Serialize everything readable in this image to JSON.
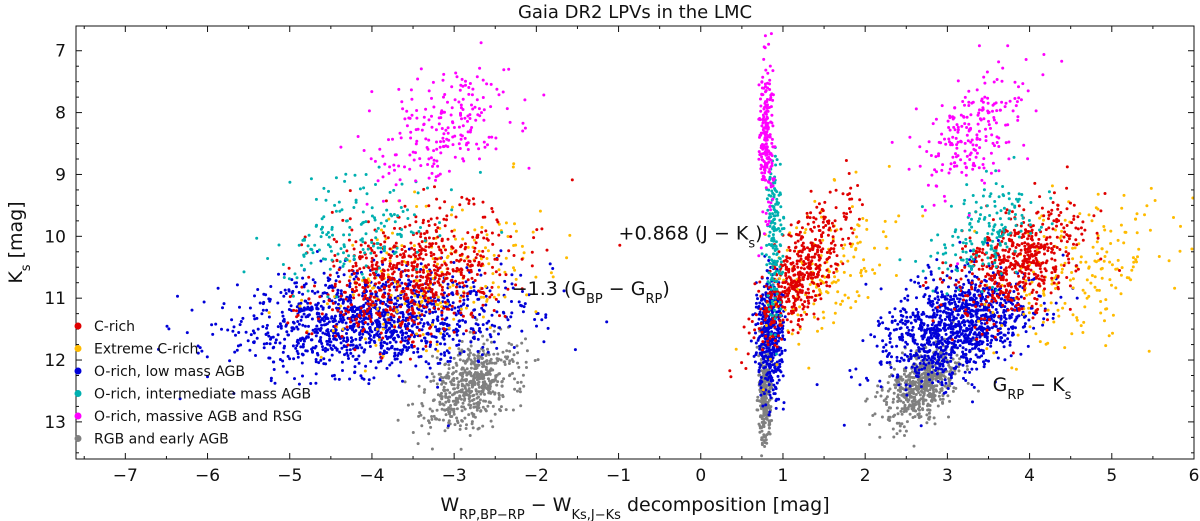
{
  "chart_data": {
    "type": "scatter",
    "title": "Gaia DR2 LPVs in the LMC",
    "xlabel": {
      "main": "W",
      "sub": "RP,BP−RP",
      "mid": " − W",
      "sub2": "Ks,J−Ks",
      "rest": " decomposition  [mag]"
    },
    "ylabel": {
      "main": "K",
      "sub": "s",
      "rest": " [mag]"
    },
    "xlim": [
      -7.6,
      6.0
    ],
    "ylim": [
      13.6,
      6.6
    ],
    "y_inverted": true,
    "xticks": [
      -7,
      -6,
      -5,
      -4,
      -3,
      -2,
      -1,
      0,
      1,
      2,
      3,
      4,
      5,
      6
    ],
    "xtick_labels": [
      "−7",
      "−6",
      "−5",
      "−4",
      "−3",
      "−2",
      "−1",
      "0",
      "1",
      "2",
      "3",
      "4",
      "5",
      "6"
    ],
    "yticks": [
      7,
      8,
      9,
      10,
      11,
      12,
      13
    ],
    "ytick_labels": [
      "7",
      "8",
      "9",
      "10",
      "11",
      "12",
      "13"
    ],
    "annotations": [
      {
        "pre": "−1.3 (G",
        "sub1": "BP",
        "mid": " − G",
        "sub2": "RP",
        "post": ")",
        "x": -2.3,
        "y": 10.95
      },
      {
        "pre": "+0.868 (J − K",
        "sub1": "s",
        "mid": ")",
        "sub2": "",
        "post": "",
        "x": -1.0,
        "y": 10.05
      },
      {
        "pre": "G",
        "sub1": "RP",
        "mid": " − K",
        "sub2": "s",
        "post": "",
        "x": 3.55,
        "y": 12.5
      }
    ],
    "legend": {
      "position": "lower-left"
    },
    "series": [
      {
        "name": "C-rich",
        "color": "#e00000",
        "clusters": [
          {
            "cx": -3.5,
            "cy": 10.6,
            "sx": 0.55,
            "sy": 0.5,
            "n": 700
          },
          {
            "cx": 1.2,
            "cy": 10.6,
            "sx": 0.2,
            "sy": 0.55,
            "n": 500
          },
          {
            "cx": 3.9,
            "cy": 10.4,
            "sx": 0.35,
            "sy": 0.45,
            "n": 550
          }
        ]
      },
      {
        "name": "Extreme C-rich",
        "color": "#ffbb00",
        "clusters": [
          {
            "cx": -3.3,
            "cy": 10.7,
            "sx": 0.6,
            "sy": 0.6,
            "n": 220
          },
          {
            "cx": 1.6,
            "cy": 10.5,
            "sx": 0.35,
            "sy": 0.6,
            "n": 160
          },
          {
            "cx": 4.6,
            "cy": 10.6,
            "sx": 0.55,
            "sy": 0.6,
            "n": 200
          }
        ]
      },
      {
        "name": "O-rich, low mass AGB",
        "color": "#0000d8",
        "clusters": [
          {
            "cx": -4.0,
            "cy": 11.35,
            "sx": 0.8,
            "sy": 0.4,
            "n": 1300
          },
          {
            "cx": 0.85,
            "cy": 11.6,
            "sx": 0.08,
            "sy": 0.5,
            "n": 450
          },
          {
            "cx": 3.1,
            "cy": 11.45,
            "sx": 0.4,
            "sy": 0.45,
            "n": 1100
          }
        ]
      },
      {
        "name": "O-rich, intermediate mass AGB",
        "color": "#00b0b0",
        "clusters": [
          {
            "cx": -4.2,
            "cy": 9.9,
            "sx": 0.5,
            "sy": 0.45,
            "n": 170
          },
          {
            "cx": 0.9,
            "cy": 10.1,
            "sx": 0.05,
            "sy": 0.7,
            "n": 170
          },
          {
            "cx": 3.5,
            "cy": 9.9,
            "sx": 0.3,
            "sy": 0.4,
            "n": 170
          }
        ]
      },
      {
        "name": "O-rich, massive AGB and RSG",
        "color": "#ff00ff",
        "clusters": [
          {
            "cx": -3.2,
            "cy": 8.3,
            "sx": 0.4,
            "sy": 0.5,
            "n": 220
          },
          {
            "cx": 0.8,
            "cy": 8.4,
            "sx": 0.04,
            "sy": 0.6,
            "n": 220
          },
          {
            "cx": 3.3,
            "cy": 8.3,
            "sx": 0.3,
            "sy": 0.5,
            "n": 220
          }
        ]
      },
      {
        "name": "RGB and early AGB",
        "color": "#808080",
        "clusters": [
          {
            "cx": -2.8,
            "cy": 12.4,
            "sx": 0.25,
            "sy": 0.35,
            "n": 550
          },
          {
            "cx": 0.78,
            "cy": 12.5,
            "sx": 0.04,
            "sy": 0.4,
            "n": 280
          },
          {
            "cx": 2.7,
            "cy": 12.4,
            "sx": 0.2,
            "sy": 0.3,
            "n": 550
          }
        ]
      }
    ]
  }
}
